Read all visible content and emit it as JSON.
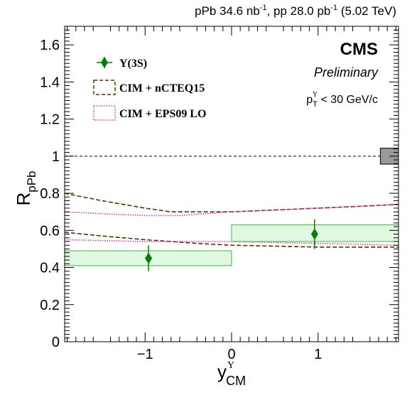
{
  "chart_data": {
    "type": "scatter",
    "top_label": {
      "pre": "pPb 34.6 nb",
      "exp1": "-1",
      "mid": ", pp 28.0 pb",
      "exp2": "-1",
      "post": " (5.02 TeV)"
    },
    "experiment": "CMS",
    "status": "Preliminary",
    "cut": {
      "p": "p",
      "sub": "T",
      "sup": "Υ",
      "rest": " < 30 GeV/c"
    },
    "ylabel": {
      "main": "R",
      "sub": "pPb"
    },
    "xlabel": {
      "main": "y",
      "sup": "Υ",
      "sub": "CM"
    },
    "xlim": [
      -1.93,
      1.93
    ],
    "ylim": [
      0,
      1.7
    ],
    "xticks": [
      -1,
      0,
      1
    ],
    "xtick_labels": [
      "−1",
      "0",
      "1"
    ],
    "yticks": [
      0,
      0.2,
      0.4,
      0.6,
      0.8,
      1,
      1.2,
      1.4,
      1.6
    ],
    "ytick_labels": [
      "0",
      "0.2",
      "0.4",
      "0.6",
      "0.8",
      "1",
      "1.2",
      "1.4",
      "1.6"
    ],
    "reference_line": 1.0,
    "global_uncertainty": {
      "x0": 1.72,
      "x1": 1.93,
      "y0": 0.957,
      "y1": 1.043,
      "color": "#999999"
    },
    "legend": [
      {
        "label": "Υ(3S)",
        "kind": "marker",
        "color": "#008000"
      },
      {
        "label": "CIM + nCTEQ15",
        "kind": "dashed-box",
        "color": "#5c2e00"
      },
      {
        "label": "CIM + EPS09 LO",
        "kind": "dotted-box",
        "color": "#e8339a"
      }
    ],
    "series": [
      {
        "name": "Υ(3S)",
        "color": "#008000",
        "points": [
          {
            "x": -0.96,
            "y": 0.45,
            "stat_err": 0.07,
            "sys_xlo": -1.93,
            "sys_xhi": 0.0,
            "sys_lo": 0.41,
            "sys_hi": 0.49
          },
          {
            "x": 0.96,
            "y": 0.58,
            "stat_err": 0.08,
            "sys_xlo": 0.0,
            "sys_xhi": 1.93,
            "sys_lo": 0.54,
            "sys_hi": 0.63
          }
        ]
      }
    ],
    "bands": [
      {
        "name": "CIM + nCTEQ15",
        "color": "#5c2e00",
        "style": "dashed",
        "upper": {
          "x": [
            -1.93,
            -1.5,
            -1.0,
            -0.7,
            -0.4,
            0.0,
            0.5,
            1.0,
            1.5,
            1.93
          ],
          "y": [
            0.8,
            0.76,
            0.72,
            0.7,
            0.7,
            0.7,
            0.71,
            0.72,
            0.73,
            0.74
          ]
        },
        "lower": {
          "x": [
            -1.93,
            -1.5,
            -1.0,
            -0.7,
            -0.4,
            0.0,
            0.5,
            1.0,
            1.5,
            1.93
          ],
          "y": [
            0.59,
            0.57,
            0.55,
            0.54,
            0.53,
            0.52,
            0.515,
            0.51,
            0.51,
            0.51
          ]
        }
      },
      {
        "name": "CIM + EPS09 LO",
        "color": "#e8339a",
        "style": "dotted",
        "upper": {
          "x": [
            -1.93,
            -1.5,
            -1.0,
            -0.6,
            -0.3,
            0.0,
            0.5,
            1.0,
            1.5,
            1.93
          ],
          "y": [
            0.7,
            0.69,
            0.68,
            0.68,
            0.69,
            0.7,
            0.71,
            0.72,
            0.73,
            0.74
          ]
        },
        "lower": {
          "x": [
            -1.93,
            -1.5,
            -1.0,
            -0.6,
            -0.3,
            0.0,
            0.5,
            1.0,
            1.5,
            1.93
          ],
          "y": [
            0.55,
            0.545,
            0.54,
            0.54,
            0.54,
            0.54,
            0.535,
            0.53,
            0.525,
            0.52
          ]
        }
      }
    ]
  }
}
